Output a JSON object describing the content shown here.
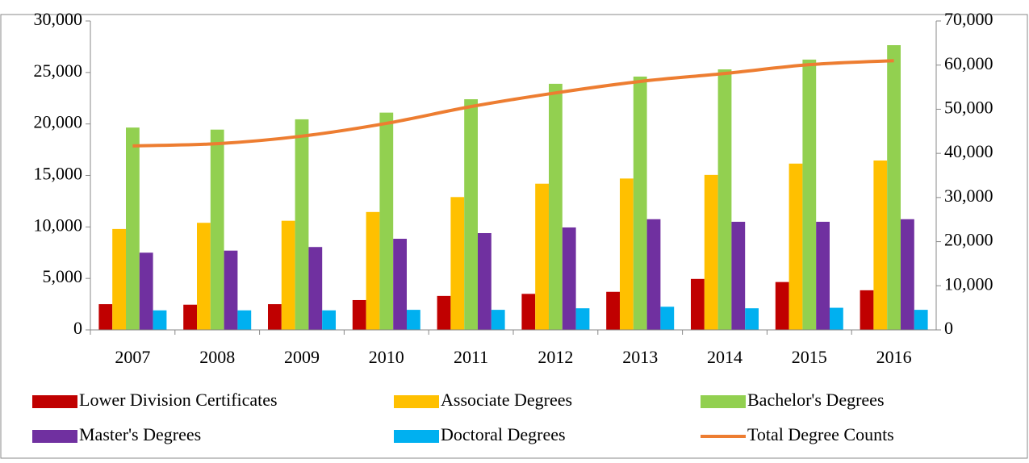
{
  "chart_data": {
    "type": "bar",
    "categories": [
      "2007",
      "2008",
      "2009",
      "2010",
      "2011",
      "2012",
      "2013",
      "2014",
      "2015",
      "2016"
    ],
    "series": [
      {
        "name": "Lower Division Certificates",
        "color": "#c00000",
        "values": [
          2500,
          2450,
          2500,
          2900,
          3300,
          3500,
          3700,
          4950,
          4650,
          3850
        ]
      },
      {
        "name": "Associate Degrees",
        "color": "#ffc000",
        "values": [
          9800,
          10400,
          10600,
          11450,
          12900,
          14200,
          14700,
          15050,
          16150,
          16450
        ]
      },
      {
        "name": "Bachelor's Degrees",
        "color": "#92d050",
        "values": [
          19650,
          19450,
          20450,
          21100,
          22400,
          23900,
          24600,
          25300,
          26250,
          27650
        ]
      },
      {
        "name": "Master's Degrees",
        "color": "#7030a0",
        "values": [
          7500,
          7700,
          8050,
          8850,
          9400,
          9950,
          10750,
          10500,
          10500,
          10750
        ]
      },
      {
        "name": "Doctoral Degrees",
        "color": "#00b0f0",
        "values": [
          1900,
          1900,
          1900,
          1950,
          1950,
          2100,
          2250,
          2100,
          2150,
          1950
        ]
      },
      {
        "name": "Total Degree Counts",
        "color": "#ed7d31",
        "type": "line",
        "axis": "y2",
        "values": [
          41700,
          42200,
          43900,
          46800,
          50600,
          53700,
          56300,
          58100,
          60100,
          61000
        ]
      }
    ],
    "ylim": [
      0,
      30000
    ],
    "yticks": [
      0,
      {
        "value": 5000,
        "label": "5,000"
      },
      {
        "value": 10000,
        "label": "10,000"
      },
      {
        "value": 15000,
        "label": "15,000"
      },
      {
        "value": 20000,
        "label": "20,000"
      },
      {
        "value": 25000,
        "label": "25,000"
      },
      {
        "value": 30000,
        "label": "30,000"
      }
    ],
    "y2lim": [
      0,
      70000
    ],
    "y2ticks": [
      0,
      {
        "value": 10000,
        "label": "10,000"
      },
      {
        "value": 20000,
        "label": "20,000"
      },
      {
        "value": 30000,
        "label": "30,000"
      },
      {
        "value": 40000,
        "label": "40,000"
      },
      {
        "value": 50000,
        "label": "50,000"
      },
      {
        "value": 60000,
        "label": "60,000"
      },
      {
        "value": 70000,
        "label": "70,000"
      }
    ],
    "legend": "bottom"
  }
}
